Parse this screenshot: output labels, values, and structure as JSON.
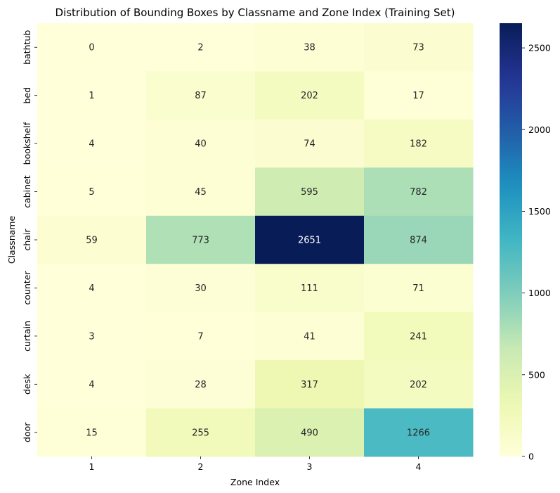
{
  "chart_data": {
    "type": "heatmap",
    "title": "Distribution of Bounding Boxes by Classname and Zone Index (Training Set)",
    "xlabel": "Zone Index",
    "ylabel": "Classname",
    "x_categories": [
      "1",
      "2",
      "3",
      "4"
    ],
    "y_categories": [
      "bathtub",
      "bed",
      "bookshelf",
      "cabinet",
      "chair",
      "counter",
      "curtain",
      "desk",
      "door"
    ],
    "values": [
      [
        0,
        2,
        38,
        73
      ],
      [
        1,
        87,
        202,
        17
      ],
      [
        4,
        40,
        74,
        182
      ],
      [
        5,
        45,
        595,
        782
      ],
      [
        59,
        773,
        2651,
        874
      ],
      [
        4,
        30,
        111,
        71
      ],
      [
        3,
        7,
        41,
        241
      ],
      [
        4,
        28,
        317,
        202
      ],
      [
        15,
        255,
        490,
        1266
      ]
    ],
    "colormap": "YlGnBu",
    "vmin": 0,
    "vmax": 2651,
    "colorbar_ticks": [
      0,
      500,
      1000,
      1500,
      2000,
      2500
    ],
    "annotations": true
  }
}
